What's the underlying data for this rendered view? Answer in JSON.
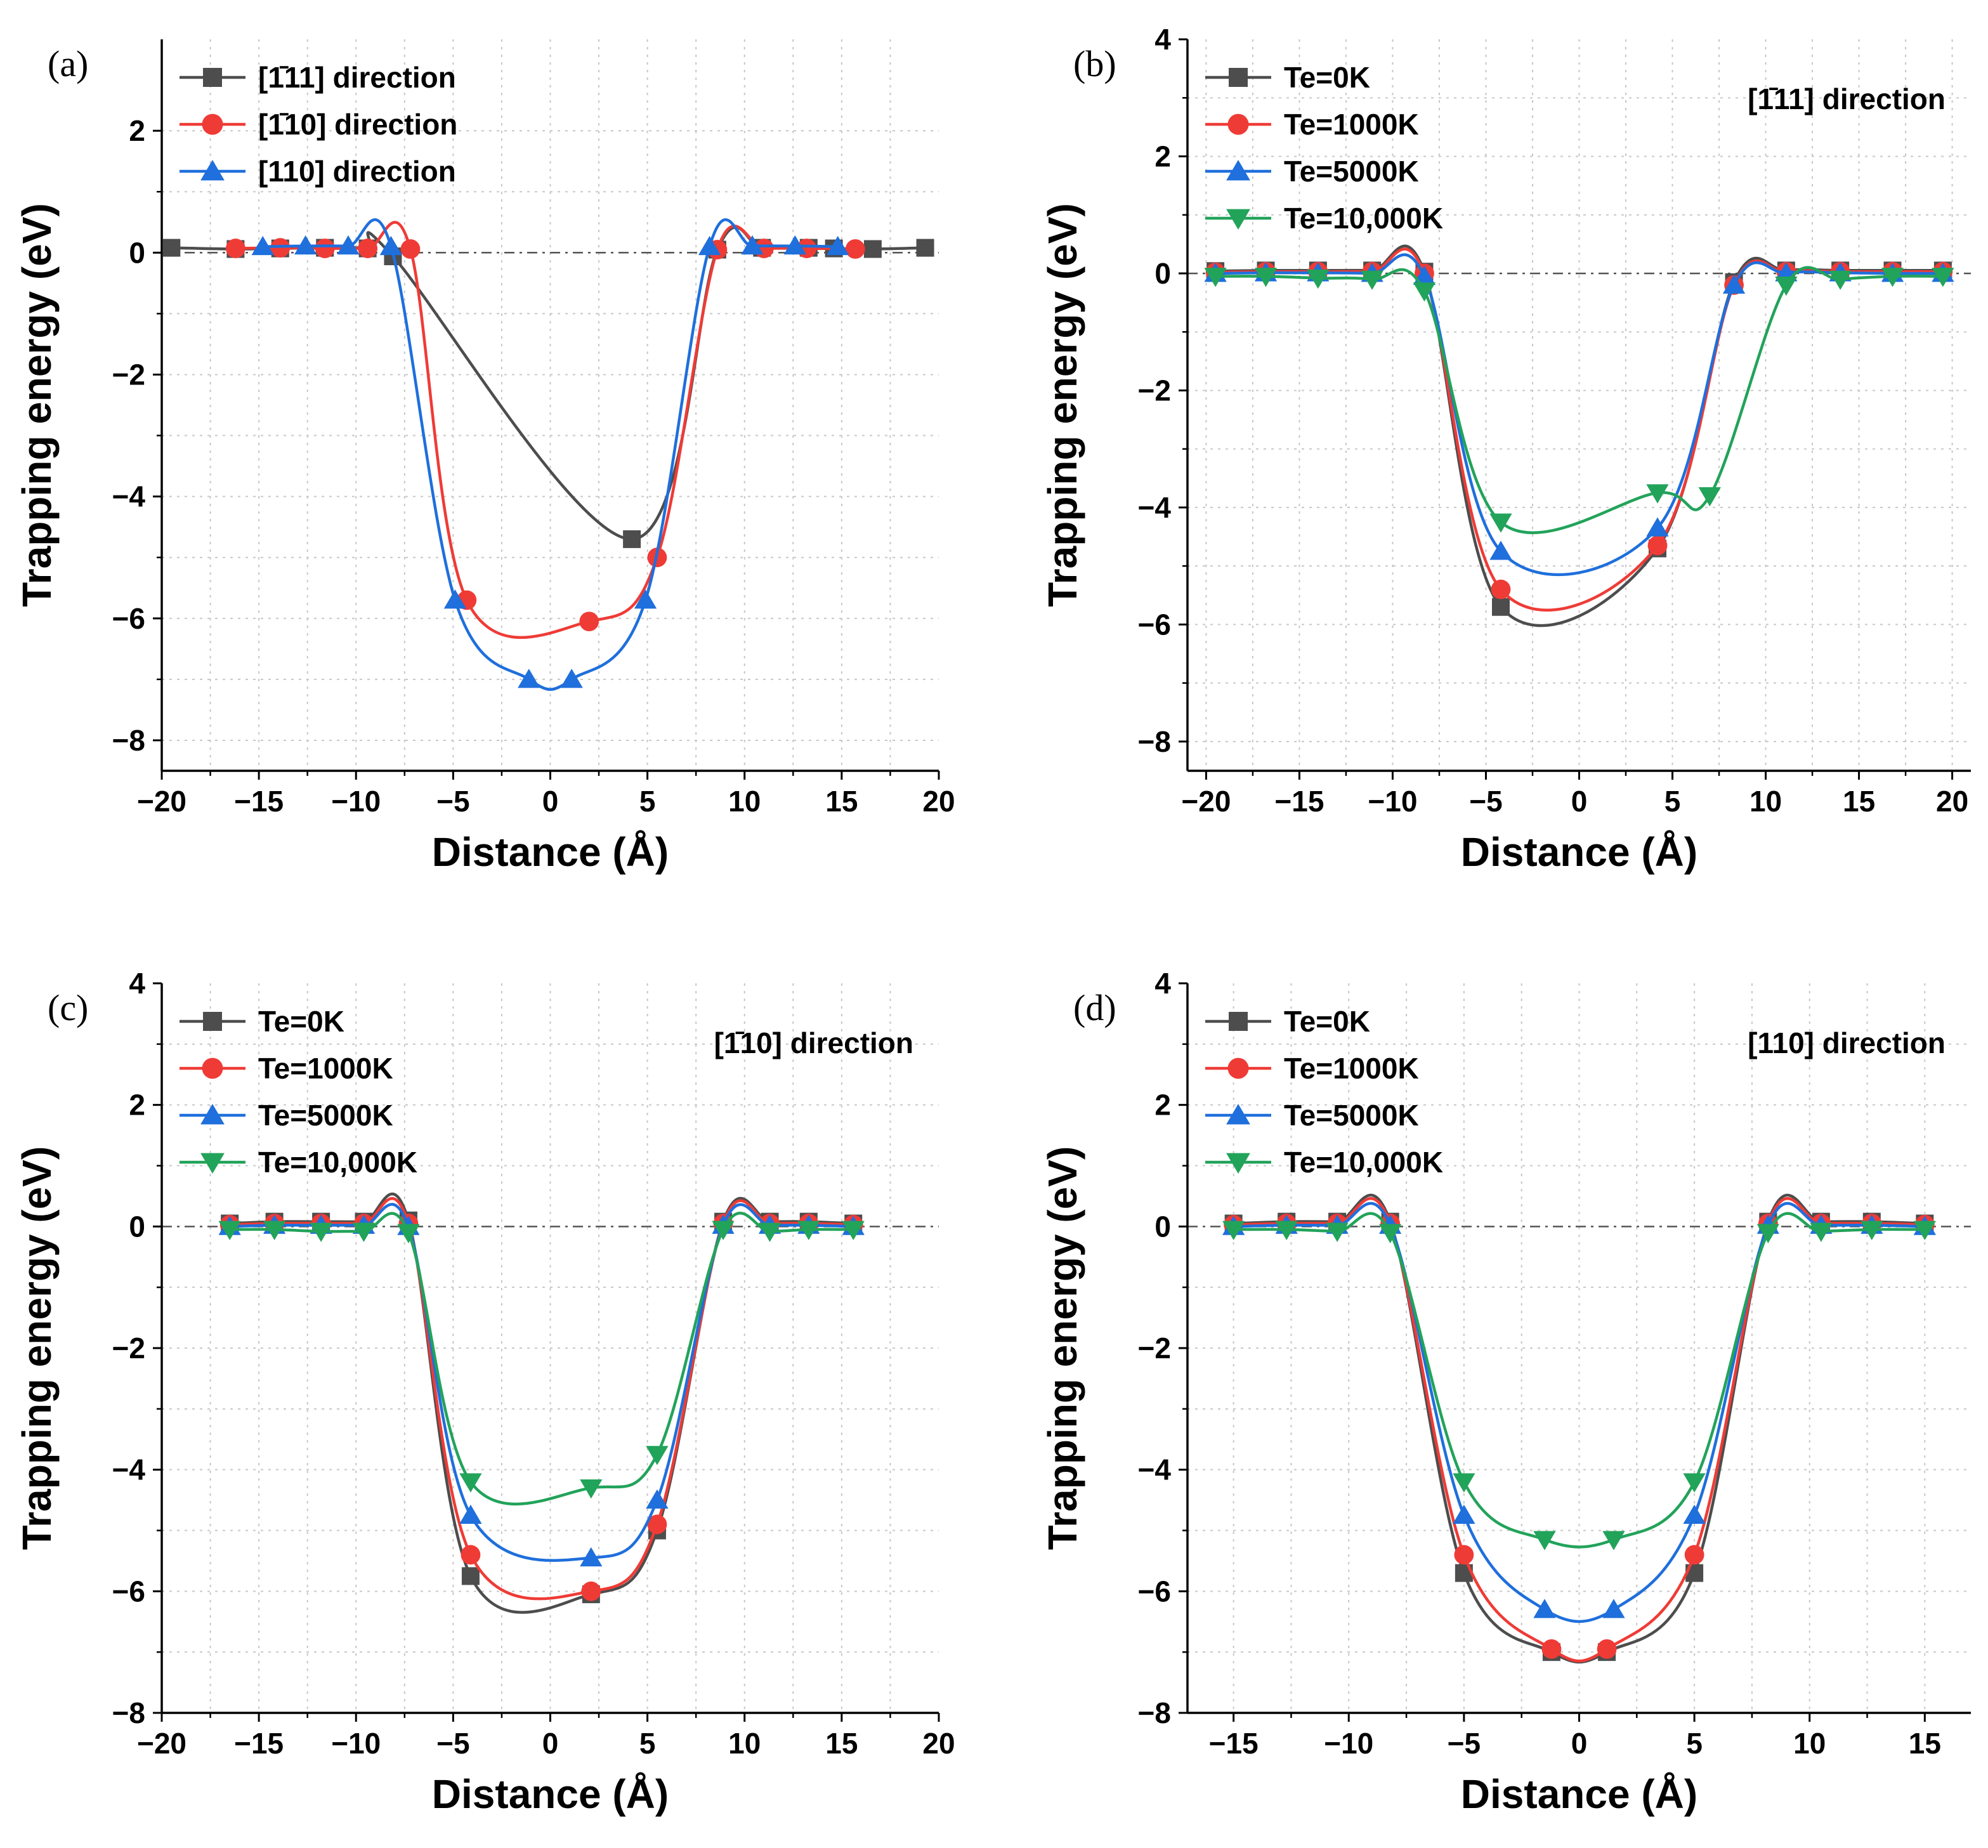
{
  "figure": {
    "panels": [
      "a",
      "b",
      "c",
      "d"
    ]
  },
  "chart_data": [
    {
      "panel_label": "(a)",
      "type": "line",
      "xlabel": "Distance (Å)",
      "ylabel": "Trapping energy (eV)",
      "xlim": [
        -20,
        20
      ],
      "ylim": [
        -8.5,
        3.5
      ],
      "xticks": [
        -20,
        -15,
        -10,
        -5,
        0,
        5,
        10,
        15,
        20
      ],
      "yticks": [
        -8,
        -6,
        -4,
        -2,
        0,
        2
      ],
      "grid": true,
      "reference_line": 0,
      "annotation": "",
      "legend_position": "top-left",
      "series": [
        {
          "name": "[1̄11] direction",
          "color": "#4d4d4d",
          "marker": "square",
          "x": [
            -19.5,
            -16.2,
            -13.9,
            -11.6,
            -9.4,
            -8.1,
            4.2,
            8.6,
            10.9,
            13.3,
            14.6,
            16.6,
            19.3
          ],
          "y": [
            0.08,
            0.06,
            0.07,
            0.08,
            0.07,
            -0.06,
            -4.7,
            0.05,
            0.08,
            0.08,
            0.07,
            0.06,
            0.08
          ]
        },
        {
          "name": "[1̄10] direction",
          "color": "#ef3b36",
          "marker": "circle",
          "x": [
            -16.2,
            -13.9,
            -11.6,
            -9.4,
            -7.2,
            -4.3,
            2.0,
            5.5,
            8.6,
            11.0,
            13.2,
            15.7
          ],
          "y": [
            0.07,
            0.08,
            0.07,
            0.07,
            0.06,
            -5.7,
            -6.05,
            -5.0,
            0.05,
            0.07,
            0.07,
            0.06
          ]
        },
        {
          "name": "[110] direction",
          "color": "#1f6fdc",
          "marker": "triangle-up",
          "x": [
            -14.8,
            -12.6,
            -10.4,
            -8.2,
            -4.9,
            -1.1,
            1.1,
            4.9,
            8.2,
            10.4,
            12.6,
            14.8
          ],
          "y": [
            0.1,
            0.11,
            0.11,
            0.1,
            -5.7,
            -7.0,
            -7.0,
            -5.7,
            0.1,
            0.11,
            0.11,
            0.1
          ]
        }
      ]
    },
    {
      "panel_label": "(b)",
      "type": "line",
      "xlabel": "Distance (Å)",
      "ylabel": "Trapping energy (eV)",
      "xlim": [
        -21,
        21
      ],
      "ylim": [
        -8.5,
        4
      ],
      "xticks": [
        -20,
        -15,
        -10,
        -5,
        0,
        5,
        10,
        15,
        20
      ],
      "yticks": [
        -8,
        -6,
        -4,
        -2,
        0,
        2,
        4
      ],
      "grid": true,
      "reference_line": 0,
      "annotation": "[1̄11] direction",
      "legend_position": "top-left",
      "series": [
        {
          "name": "Te=0K",
          "color": "#4d4d4d",
          "marker": "square",
          "x": [
            -19.5,
            -16.8,
            -14,
            -11.1,
            -8.3,
            -4.2,
            4.2,
            8.3,
            11.1,
            14,
            16.8,
            19.5
          ],
          "y": [
            0.04,
            0.05,
            0.05,
            0.05,
            0.03,
            -5.7,
            -4.7,
            -0.15,
            0.05,
            0.05,
            0.05,
            0.05
          ]
        },
        {
          "name": "Te=1000K",
          "color": "#ef3b36",
          "marker": "circle",
          "x": [
            -19.5,
            -16.8,
            -14,
            -11.1,
            -8.3,
            -4.2,
            4.2,
            8.3,
            11.1,
            14,
            16.8,
            19.5
          ],
          "y": [
            0.02,
            0.03,
            0.03,
            0.03,
            0.0,
            -5.4,
            -4.65,
            -0.2,
            0.03,
            0.03,
            0.03,
            0.03
          ]
        },
        {
          "name": "Te=5000K",
          "color": "#1f6fdc",
          "marker": "triangle-up",
          "x": [
            -19.5,
            -16.8,
            -14,
            -11.1,
            -8.3,
            -4.2,
            4.2,
            8.3,
            11.1,
            14,
            16.8,
            19.5
          ],
          "y": [
            0.0,
            0.01,
            0.01,
            0.0,
            -0.05,
            -4.75,
            -4.35,
            -0.2,
            0.01,
            0.01,
            0.0,
            0.0
          ]
        },
        {
          "name": "Te=10,000K",
          "color": "#22a35a",
          "marker": "triangle-down",
          "x": [
            -19.5,
            -16.8,
            -14,
            -11.1,
            -8.3,
            -4.2,
            4.2,
            7.0,
            11.1,
            14,
            16.8,
            19.5
          ],
          "y": [
            -0.05,
            -0.05,
            -0.08,
            -0.1,
            -0.3,
            -4.25,
            -3.75,
            -3.8,
            -0.2,
            -0.1,
            -0.05,
            -0.05
          ]
        }
      ]
    },
    {
      "panel_label": "(c)",
      "type": "line",
      "xlabel": "Distance (Å)",
      "ylabel": "Trapping energy (eV)",
      "xlim": [
        -20,
        20
      ],
      "ylim": [
        -8,
        4
      ],
      "xticks": [
        -20,
        -15,
        -10,
        -5,
        0,
        5,
        10,
        15,
        20
      ],
      "yticks": [
        -8,
        -6,
        -4,
        -2,
        0,
        2,
        4
      ],
      "grid": true,
      "reference_line": 0,
      "annotation": "[1̄10] direction",
      "legend_position": "top-left",
      "series": [
        {
          "name": "Te=0K",
          "color": "#4d4d4d",
          "marker": "square",
          "x": [
            -16.5,
            -14.2,
            -11.8,
            -9.6,
            -7.3,
            -4.1,
            2.1,
            5.5,
            8.9,
            11.3,
            13.3,
            15.6
          ],
          "y": [
            0.05,
            0.08,
            0.08,
            0.08,
            0.1,
            -5.75,
            -6.05,
            -5.0,
            0.08,
            0.08,
            0.08,
            0.05
          ]
        },
        {
          "name": "Te=1000K",
          "color": "#ef3b36",
          "marker": "circle",
          "x": [
            -16.5,
            -14.2,
            -11.8,
            -9.6,
            -7.3,
            -4.1,
            2.1,
            5.5,
            8.9,
            11.3,
            13.3,
            15.6
          ],
          "y": [
            0.03,
            0.05,
            0.05,
            0.05,
            0.05,
            -5.4,
            -6.0,
            -4.9,
            0.05,
            0.05,
            0.05,
            0.03
          ]
        },
        {
          "name": "Te=5000K",
          "color": "#1f6fdc",
          "marker": "triangle-up",
          "x": [
            -16.5,
            -14.2,
            -11.8,
            -9.6,
            -7.3,
            -4.1,
            2.1,
            5.5,
            8.9,
            11.3,
            13.3,
            15.6
          ],
          "y": [
            0.0,
            0.02,
            0.02,
            0.02,
            0.0,
            -4.75,
            -5.45,
            -4.5,
            0.02,
            0.02,
            0.02,
            0.0
          ]
        },
        {
          "name": "Te=10,000K",
          "color": "#22a35a",
          "marker": "triangle-down",
          "x": [
            -16.5,
            -14.2,
            -11.8,
            -9.6,
            -7.3,
            -4.1,
            2.1,
            5.5,
            8.9,
            11.3,
            13.3,
            15.6
          ],
          "y": [
            -0.05,
            -0.05,
            -0.08,
            -0.08,
            -0.1,
            -4.2,
            -4.3,
            -3.75,
            -0.05,
            -0.08,
            -0.05,
            -0.05
          ]
        }
      ]
    },
    {
      "panel_label": "(d)",
      "type": "line",
      "xlabel": "Distance (Å)",
      "ylabel": "Trapping energy (eV)",
      "xlim": [
        -17,
        17
      ],
      "ylim": [
        -8,
        4
      ],
      "xticks": [
        -15,
        -10,
        -5,
        0,
        5,
        10,
        15
      ],
      "yticks": [
        -8,
        -6,
        -4,
        -2,
        0,
        2,
        4
      ],
      "grid": true,
      "reference_line": 0,
      "annotation": "[110] direction",
      "legend_position": "top-left",
      "series": [
        {
          "name": "Te=0K",
          "color": "#4d4d4d",
          "marker": "square",
          "x": [
            -15,
            -12.7,
            -10.5,
            -8.2,
            -5,
            -1.2,
            1.2,
            5,
            8.2,
            10.5,
            12.7,
            15
          ],
          "y": [
            0.05,
            0.08,
            0.08,
            0.08,
            -5.7,
            -7.0,
            -7.0,
            -5.7,
            0.08,
            0.08,
            0.08,
            0.05
          ]
        },
        {
          "name": "Te=1000K",
          "color": "#ef3b36",
          "marker": "circle",
          "x": [
            -15,
            -12.7,
            -10.5,
            -8.2,
            -5,
            -1.2,
            1.2,
            5,
            8.2,
            10.5,
            12.7,
            15
          ],
          "y": [
            0.03,
            0.05,
            0.05,
            0.05,
            -5.4,
            -6.95,
            -6.95,
            -5.4,
            0.05,
            0.05,
            0.05,
            0.03
          ]
        },
        {
          "name": "Te=5000K",
          "color": "#1f6fdc",
          "marker": "triangle-up",
          "x": [
            -15,
            -12.7,
            -10.5,
            -8.2,
            -5,
            -1.5,
            1.5,
            5,
            8.2,
            10.5,
            12.7,
            15
          ],
          "y": [
            0.0,
            0.02,
            0.02,
            0.02,
            -4.75,
            -6.3,
            -6.3,
            -4.75,
            0.02,
            0.02,
            0.02,
            0.0
          ]
        },
        {
          "name": "Te=10,000K",
          "color": "#22a35a",
          "marker": "triangle-down",
          "x": [
            -15,
            -12.7,
            -10.5,
            -8.2,
            -5,
            -1.5,
            1.5,
            5,
            8.2,
            10.5,
            12.7,
            15
          ],
          "y": [
            -0.05,
            -0.05,
            -0.08,
            -0.1,
            -4.2,
            -5.15,
            -5.15,
            -4.2,
            -0.1,
            -0.08,
            -0.05,
            -0.05
          ]
        }
      ]
    }
  ]
}
